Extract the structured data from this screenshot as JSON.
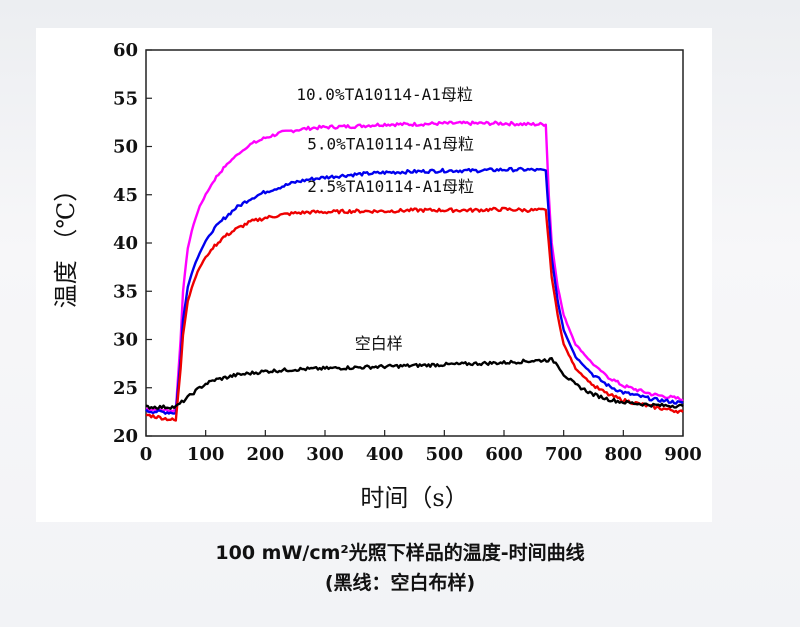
{
  "caption": {
    "line1": "100 mW/cm²光照下样品的温度-时间曲线",
    "line2": "(黑线：空白布样)"
  },
  "chart_data": {
    "type": "line",
    "title": "",
    "xlabel": "时间（s）",
    "ylabel": "温度 （℃）",
    "xlim": [
      0,
      900
    ],
    "ylim": [
      20,
      60
    ],
    "xticks": [
      0,
      100,
      200,
      300,
      400,
      500,
      600,
      700,
      800,
      900
    ],
    "yticks": [
      20,
      25,
      30,
      35,
      40,
      45,
      50,
      55,
      60
    ],
    "grid": false,
    "series": [
      {
        "name": "10.0%TA10114-A1母粒",
        "color": "#ff00ff",
        "x": [
          0,
          50,
          58,
          62,
          70,
          80,
          90,
          100,
          115,
          130,
          150,
          175,
          200,
          225,
          250,
          275,
          300,
          350,
          400,
          450,
          500,
          550,
          600,
          640,
          670,
          675,
          680,
          690,
          700,
          720,
          750,
          775,
          800,
          850,
          900
        ],
        "y": [
          22.8,
          22.6,
          30.0,
          35.0,
          39.5,
          42.0,
          43.8,
          45.0,
          46.6,
          47.8,
          49.0,
          50.2,
          50.9,
          51.4,
          51.7,
          51.9,
          52.0,
          52.1,
          52.3,
          52.3,
          52.4,
          52.4,
          52.4,
          52.3,
          52.3,
          45.0,
          40.0,
          35.5,
          32.5,
          29.5,
          27.4,
          26.1,
          25.2,
          24.3,
          23.8
        ]
      },
      {
        "name": "5.0%TA10114-A1母粒",
        "color": "#0000ee",
        "x": [
          0,
          50,
          58,
          62,
          70,
          80,
          90,
          100,
          115,
          130,
          150,
          175,
          200,
          225,
          250,
          275,
          300,
          350,
          400,
          450,
          500,
          550,
          600,
          640,
          670,
          675,
          680,
          690,
          700,
          720,
          750,
          775,
          800,
          850,
          900
        ],
        "y": [
          22.6,
          22.4,
          28.0,
          32.0,
          35.5,
          37.5,
          39.0,
          40.2,
          41.5,
          42.5,
          43.6,
          44.6,
          45.3,
          45.8,
          46.3,
          46.6,
          46.8,
          47.1,
          47.3,
          47.4,
          47.5,
          47.5,
          47.6,
          47.6,
          47.5,
          43.0,
          38.5,
          34.0,
          31.0,
          28.2,
          26.3,
          25.2,
          24.5,
          23.8,
          23.4
        ]
      },
      {
        "name": "2.5%TA10114-A1母粒",
        "color": "#ee0000",
        "x": [
          0,
          50,
          58,
          62,
          70,
          80,
          90,
          100,
          115,
          130,
          150,
          175,
          200,
          225,
          250,
          275,
          300,
          350,
          400,
          450,
          500,
          550,
          600,
          640,
          670,
          675,
          680,
          690,
          700,
          720,
          750,
          775,
          800,
          850,
          900
        ],
        "y": [
          22.2,
          21.6,
          27.0,
          30.5,
          34.0,
          36.0,
          37.5,
          38.5,
          39.7,
          40.6,
          41.4,
          42.2,
          42.6,
          42.9,
          43.1,
          43.2,
          43.2,
          43.3,
          43.3,
          43.4,
          43.4,
          43.4,
          43.5,
          43.4,
          43.4,
          40.0,
          36.5,
          32.5,
          29.5,
          27.0,
          25.2,
          24.3,
          23.7,
          23.0,
          22.5
        ]
      },
      {
        "name": "空白样",
        "color": "#000000",
        "x": [
          0,
          50,
          60,
          70,
          80,
          90,
          100,
          115,
          130,
          150,
          175,
          200,
          250,
          300,
          350,
          400,
          450,
          500,
          550,
          600,
          650,
          680,
          690,
          700,
          720,
          750,
          775,
          800,
          850,
          900
        ],
        "y": [
          23.0,
          23.0,
          23.5,
          24.0,
          24.5,
          25.0,
          25.4,
          25.8,
          26.0,
          26.3,
          26.5,
          26.7,
          26.9,
          27.0,
          27.1,
          27.2,
          27.3,
          27.4,
          27.5,
          27.6,
          27.8,
          27.9,
          27.4,
          26.4,
          25.3,
          24.3,
          23.8,
          23.5,
          23.2,
          23.1
        ]
      }
    ],
    "annotations": [
      {
        "text": "10.0%TA10114-A1母粒",
        "series": "10.0%TA10114-A1母粒",
        "at": [
          400,
          54.8
        ]
      },
      {
        "text": "5.0%TA10114-A1母粒",
        "series": "5.0%TA10114-A1母粒",
        "at": [
          410,
          49.7
        ]
      },
      {
        "text": "2.5%TA10114-A1母粒",
        "series": "2.5%TA10114-A1母粒",
        "at": [
          410,
          45.3
        ]
      },
      {
        "text": "空白样",
        "series": "空白样",
        "at": [
          390,
          29.0
        ]
      }
    ]
  }
}
